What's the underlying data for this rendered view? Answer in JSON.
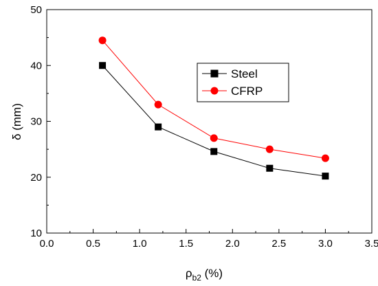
{
  "chart_data": {
    "type": "line",
    "title": "",
    "xlabel": {
      "main": "ρ",
      "sub": "b2",
      "unit": " (%)"
    },
    "ylabel": "δ (mm)",
    "xlim": [
      0.0,
      3.5
    ],
    "ylim": [
      10,
      50
    ],
    "x_ticks": [
      "0.0",
      "0.5",
      "1.0",
      "1.5",
      "2.0",
      "2.5",
      "3.0",
      "3.5"
    ],
    "y_ticks": [
      "10",
      "20",
      "30",
      "40",
      "50"
    ],
    "grid": false,
    "legend_position": "top-right",
    "x": [
      0.6,
      1.2,
      1.8,
      2.4,
      3.0
    ],
    "series": [
      {
        "name": "Steel",
        "values": [
          40.0,
          29.0,
          24.6,
          21.6,
          20.2
        ],
        "color": "#000000",
        "marker": "square"
      },
      {
        "name": "CFRP",
        "values": [
          44.5,
          33.0,
          27.0,
          25.0,
          23.4
        ],
        "color": "#ff0000",
        "marker": "circle"
      }
    ]
  }
}
